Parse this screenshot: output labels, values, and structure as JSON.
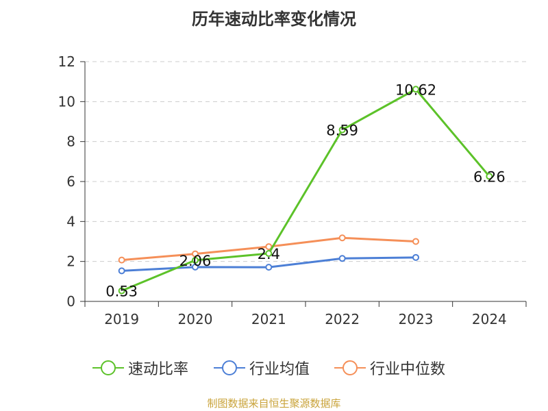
{
  "chart_data": {
    "type": "line",
    "title": "历年速动比率变化情况",
    "categories": [
      "2019",
      "2020",
      "2021",
      "2022",
      "2023",
      "2024"
    ],
    "ylim": [
      0,
      12
    ],
    "yticks": [
      0,
      2,
      4,
      6,
      8,
      10,
      12
    ],
    "grid": true,
    "legend_position": "bottom",
    "series": [
      {
        "name": "速动比率",
        "color": "#5cc229",
        "values": [
          0.53,
          2.06,
          2.4,
          8.59,
          10.62,
          6.26
        ],
        "labels": [
          "0.53",
          "2.06",
          "2.4",
          "8.59",
          "10.62",
          "6.26"
        ]
      },
      {
        "name": "行业均值",
        "color": "#4c7fd6",
        "values": [
          1.53,
          1.72,
          1.71,
          2.15,
          2.2,
          null
        ]
      },
      {
        "name": "行业中位数",
        "color": "#f58f58",
        "values": [
          2.07,
          2.38,
          2.74,
          3.18,
          3.0,
          null
        ]
      }
    ]
  },
  "source_text": "制图数据来自恒生聚源数据库"
}
